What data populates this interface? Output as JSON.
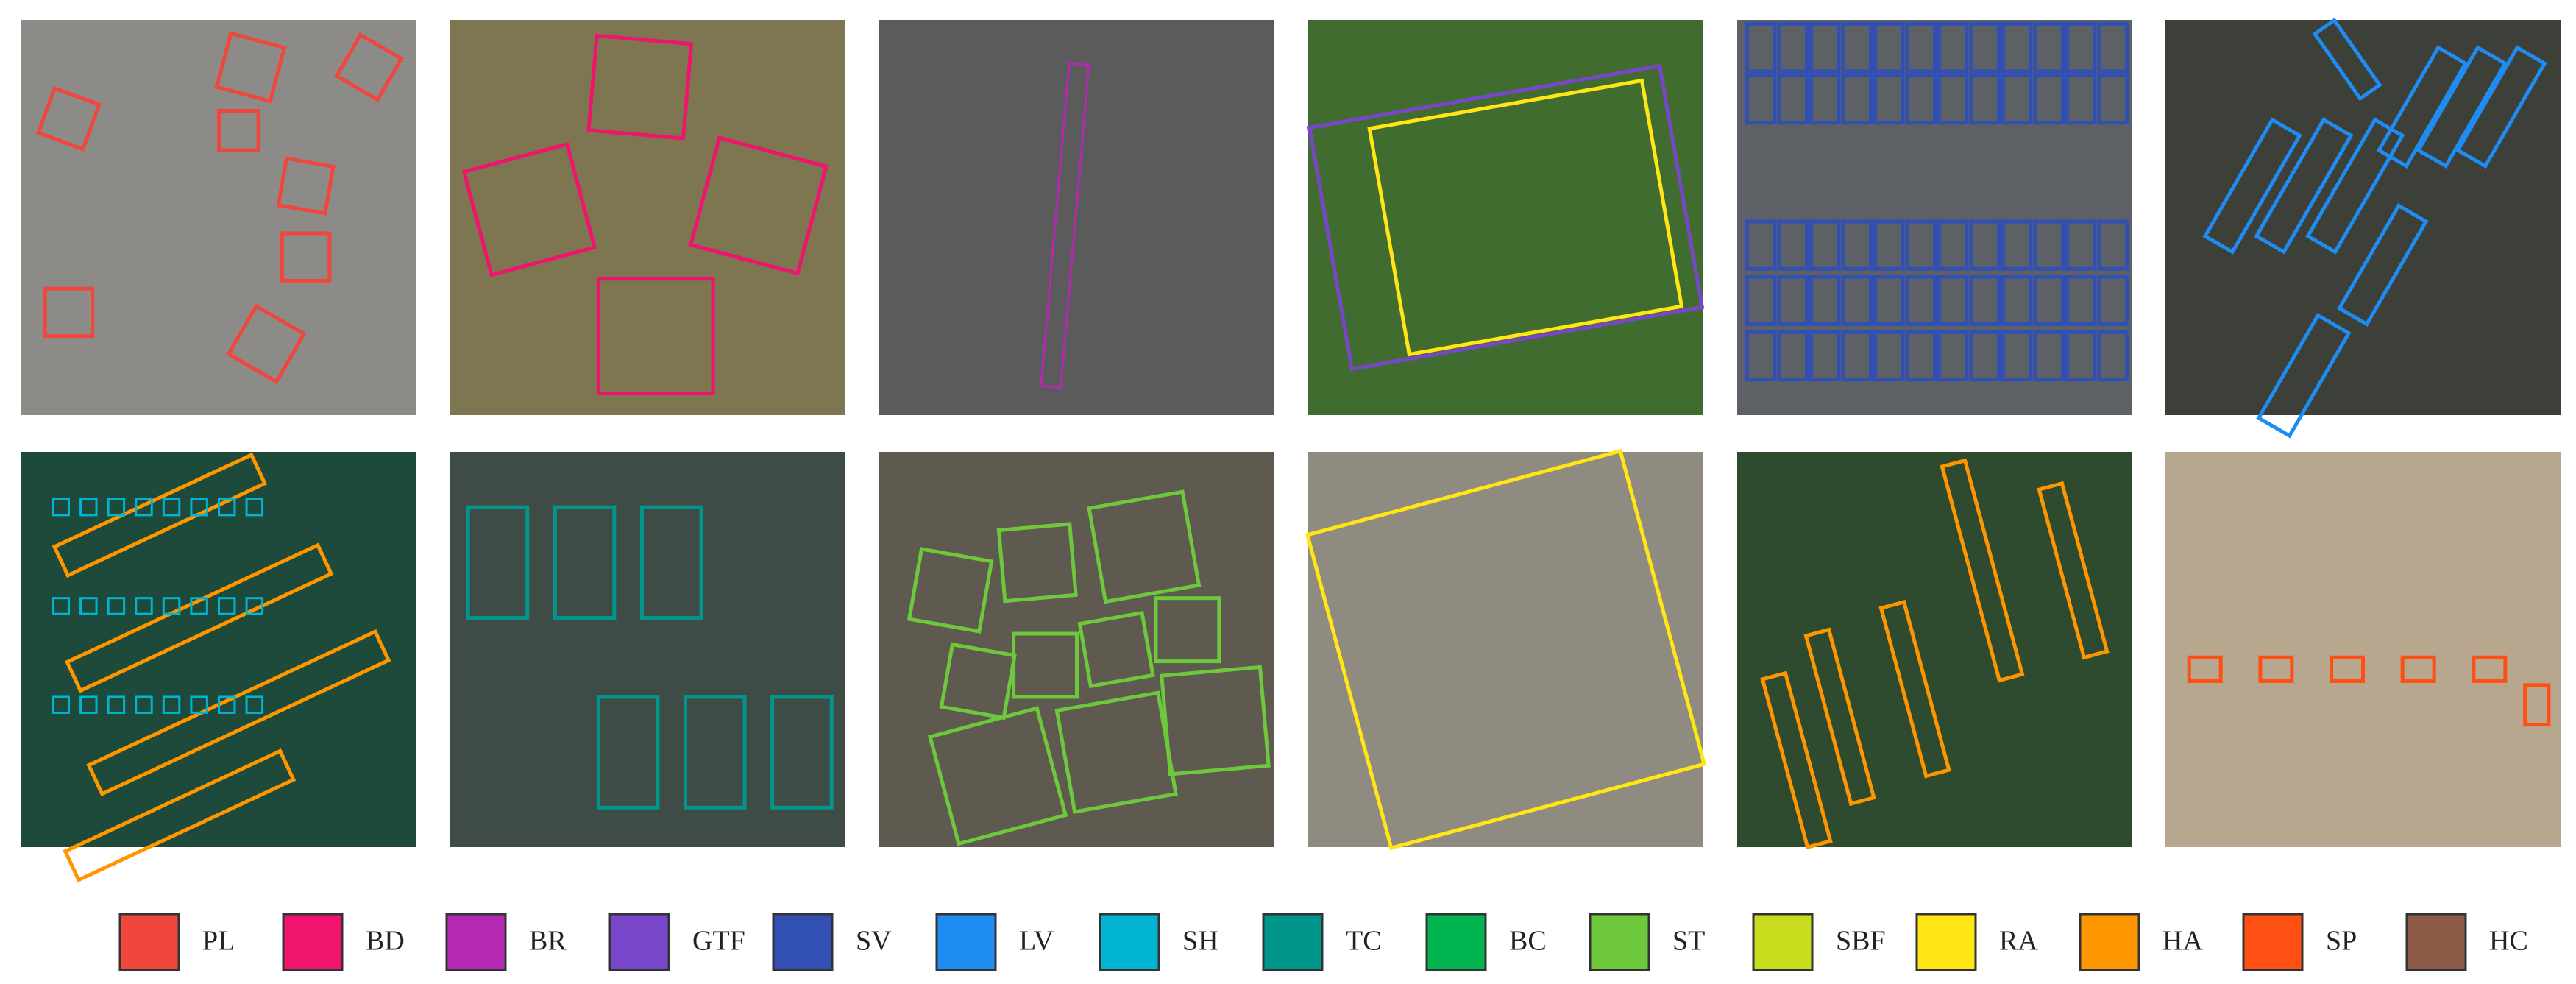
{
  "legend": [
    {
      "label": "PL",
      "color": "#f0463c"
    },
    {
      "label": "BD",
      "color": "#f0146e"
    },
    {
      "label": "BR",
      "color": "#b428b4"
    },
    {
      "label": "GTF",
      "color": "#7846c8"
    },
    {
      "label": "SV",
      "color": "#3250b4"
    },
    {
      "label": "LV",
      "color": "#1e8cf0"
    },
    {
      "label": "SH",
      "color": "#00b4d2"
    },
    {
      "label": "TC",
      "color": "#00968c"
    },
    {
      "label": "BC",
      "color": "#00b450"
    },
    {
      "label": "ST",
      "color": "#6ec83c"
    },
    {
      "label": "SBF",
      "color": "#c8dc1e"
    },
    {
      "label": "RA",
      "color": "#ffe614"
    },
    {
      "label": "HA",
      "color": "#ff9600"
    },
    {
      "label": "SP",
      "color": "#ff5014"
    },
    {
      "label": "HC",
      "color": "#8c5a46"
    }
  ]
}
